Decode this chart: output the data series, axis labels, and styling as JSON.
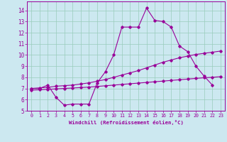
{
  "xlabel": "Windchill (Refroidissement éolien,°C)",
  "bg_color": "#cce8f0",
  "grid_color": "#99ccbb",
  "line_color": "#990099",
  "xlim": [
    -0.5,
    23.5
  ],
  "ylim": [
    5,
    14.8
  ],
  "yticks": [
    5,
    6,
    7,
    8,
    9,
    10,
    11,
    12,
    13,
    14
  ],
  "xticks": [
    0,
    1,
    2,
    3,
    4,
    5,
    6,
    7,
    8,
    9,
    10,
    11,
    12,
    13,
    14,
    15,
    16,
    17,
    18,
    19,
    20,
    21,
    22,
    23
  ],
  "curve1_x": [
    0,
    1,
    2,
    3,
    4,
    5,
    6,
    7,
    8,
    9,
    10,
    11,
    12,
    13,
    14,
    15,
    16,
    17,
    18,
    19,
    20,
    21,
    22
  ],
  "curve1_y": [
    7.0,
    7.0,
    7.3,
    6.2,
    5.5,
    5.6,
    5.6,
    5.6,
    7.5,
    8.5,
    10.0,
    12.5,
    12.5,
    12.5,
    14.2,
    13.1,
    13.0,
    12.5,
    10.8,
    10.3,
    9.0,
    8.1,
    7.3
  ],
  "curve2_x": [
    0,
    1,
    2,
    3,
    4,
    5,
    6,
    7,
    8,
    9,
    10,
    11,
    12,
    13,
    14,
    15,
    16,
    17,
    18,
    19,
    20,
    21,
    22,
    23
  ],
  "curve2_y": [
    7.0,
    7.05,
    7.1,
    7.2,
    7.25,
    7.3,
    7.4,
    7.5,
    7.65,
    7.8,
    8.0,
    8.2,
    8.4,
    8.6,
    8.85,
    9.1,
    9.35,
    9.55,
    9.75,
    9.9,
    10.05,
    10.15,
    10.25,
    10.35
  ],
  "curve3_x": [
    0,
    1,
    2,
    3,
    4,
    5,
    6,
    7,
    8,
    9,
    10,
    11,
    12,
    13,
    14,
    15,
    16,
    17,
    18,
    19,
    20,
    21,
    22,
    23
  ],
  "curve3_y": [
    6.85,
    6.88,
    6.92,
    6.96,
    7.0,
    7.04,
    7.08,
    7.12,
    7.18,
    7.24,
    7.3,
    7.36,
    7.42,
    7.48,
    7.54,
    7.6,
    7.66,
    7.72,
    7.78,
    7.84,
    7.9,
    7.96,
    8.0,
    8.06
  ]
}
